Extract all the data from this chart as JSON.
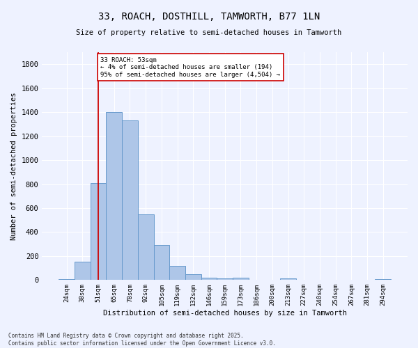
{
  "title1": "33, ROACH, DOSTHILL, TAMWORTH, B77 1LN",
  "title2": "Size of property relative to semi-detached houses in Tamworth",
  "xlabel": "Distribution of semi-detached houses by size in Tamworth",
  "ylabel": "Number of semi-detached properties",
  "categories": [
    "24sqm",
    "38sqm",
    "51sqm",
    "65sqm",
    "78sqm",
    "92sqm",
    "105sqm",
    "119sqm",
    "132sqm",
    "146sqm",
    "159sqm",
    "173sqm",
    "186sqm",
    "200sqm",
    "213sqm",
    "227sqm",
    "240sqm",
    "254sqm",
    "267sqm",
    "281sqm",
    "294sqm"
  ],
  "values": [
    10,
    150,
    810,
    1400,
    1330,
    550,
    295,
    120,
    50,
    20,
    15,
    20,
    0,
    0,
    15,
    0,
    0,
    0,
    0,
    0,
    5
  ],
  "bar_color": "#aec6e8",
  "bar_edge_color": "#6699cc",
  "ylim": [
    0,
    1900
  ],
  "yticks": [
    0,
    200,
    400,
    600,
    800,
    1000,
    1200,
    1400,
    1600,
    1800
  ],
  "vline_x": 2.0,
  "vline_color": "#cc0000",
  "annotation_text": "33 ROACH: 53sqm\n← 4% of semi-detached houses are smaller (194)\n95% of semi-detached houses are larger (4,504) →",
  "annotation_box_color": "#ffffff",
  "annotation_box_edge": "#cc0000",
  "footnote": "Contains HM Land Registry data © Crown copyright and database right 2025.\nContains public sector information licensed under the Open Government Licence v3.0.",
  "bg_color": "#eef2ff",
  "grid_color": "#ffffff"
}
